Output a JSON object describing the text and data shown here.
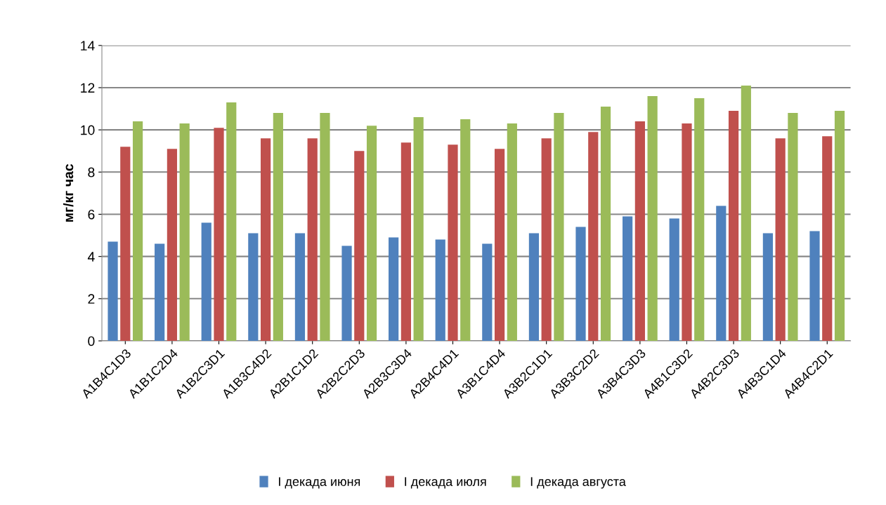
{
  "chart_data": {
    "type": "bar",
    "ylabel": "мг/кг час",
    "categories": [
      "A1B4C1D3",
      "A1B1C2D4",
      "A1B2C3D1",
      "A1B3C4D2",
      "A2B1C1D2",
      "A2B2C2D3",
      "A2B3C3D4",
      "A2B4C4D1",
      "A3B1C4D4",
      "A3B2C1D1",
      "A3B3C2D2",
      "A3B4C3D3",
      "A4B1C3D2",
      "A4B2C3D3",
      "A4B3C1D4",
      "A4B4C2D1"
    ],
    "series": [
      {
        "name": "I декада июня",
        "color": "#4f81bd",
        "values": [
          4.7,
          4.6,
          5.6,
          5.1,
          5.1,
          4.5,
          4.9,
          4.8,
          4.6,
          5.1,
          5.4,
          5.9,
          5.8,
          6.4,
          5.1,
          5.2
        ]
      },
      {
        "name": "I декада июля",
        "color": "#c0504d",
        "values": [
          9.2,
          9.1,
          10.1,
          9.6,
          9.6,
          9.0,
          9.4,
          9.3,
          9.1,
          9.6,
          9.9,
          10.4,
          10.3,
          10.9,
          9.6,
          9.7
        ]
      },
      {
        "name": "I декада августа",
        "color": "#9bbb59",
        "values": [
          10.4,
          10.3,
          11.3,
          10.8,
          10.8,
          10.2,
          10.6,
          10.5,
          10.3,
          10.8,
          11.1,
          11.6,
          11.5,
          12.1,
          10.8,
          10.9
        ]
      }
    ],
    "ylim": [
      0,
      14
    ],
    "yticks": [
      0,
      2,
      4,
      6,
      8,
      10,
      12,
      14
    ],
    "grid": "y",
    "legend": "bottom"
  }
}
